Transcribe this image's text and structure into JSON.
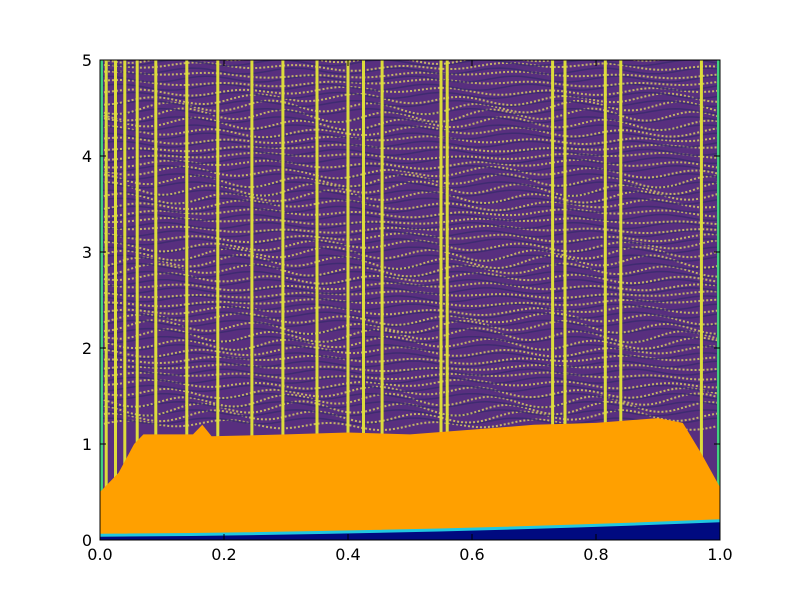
{
  "chart_data": {
    "type": "heatmap",
    "title": "",
    "xlabel": "",
    "ylabel": "",
    "xlim": [
      0.0,
      1.0
    ],
    "ylim": [
      0,
      5
    ],
    "x_ticks": [
      "0.0",
      "0.2",
      "0.4",
      "0.6",
      "0.8",
      "1.0"
    ],
    "y_ticks": [
      "0",
      "1",
      "2",
      "3",
      "4",
      "5"
    ],
    "x_tick_values": [
      0.0,
      0.2,
      0.4,
      0.6,
      0.8,
      1.0
    ],
    "y_tick_values": [
      0,
      1,
      2,
      3,
      4,
      5
    ],
    "colors": {
      "background": "#582f7f",
      "band": "#ffa000",
      "stripe": "#dcdc3c",
      "edge": "#40d080",
      "floor": "#000a80",
      "floor_edge": "#20c8e0",
      "wave_light": "#e8e060",
      "wave_dark": "#3a2a6e"
    },
    "orange_band": {
      "base_at_x0": 0.05,
      "base_at_x1": 0.2,
      "top_profile": [
        [
          0.0,
          0.5
        ],
        [
          0.03,
          0.7
        ],
        [
          0.055,
          1.0
        ],
        [
          0.07,
          1.1
        ],
        [
          0.1,
          1.1
        ],
        [
          0.15,
          1.1
        ],
        [
          0.165,
          1.2
        ],
        [
          0.18,
          1.08
        ],
        [
          0.3,
          1.1
        ],
        [
          0.4,
          1.12
        ],
        [
          0.5,
          1.1
        ],
        [
          0.6,
          1.15
        ],
        [
          0.7,
          1.2
        ],
        [
          0.8,
          1.22
        ],
        [
          0.9,
          1.27
        ],
        [
          0.94,
          1.22
        ],
        [
          0.97,
          0.9
        ],
        [
          1.0,
          0.55
        ]
      ]
    },
    "stripe_positions": [
      0.01,
      0.025,
      0.04,
      0.06,
      0.09,
      0.14,
      0.19,
      0.245,
      0.295,
      0.35,
      0.4,
      0.425,
      0.455,
      0.55,
      0.56,
      0.73,
      0.75,
      0.815,
      0.84,
      0.97
    ]
  }
}
